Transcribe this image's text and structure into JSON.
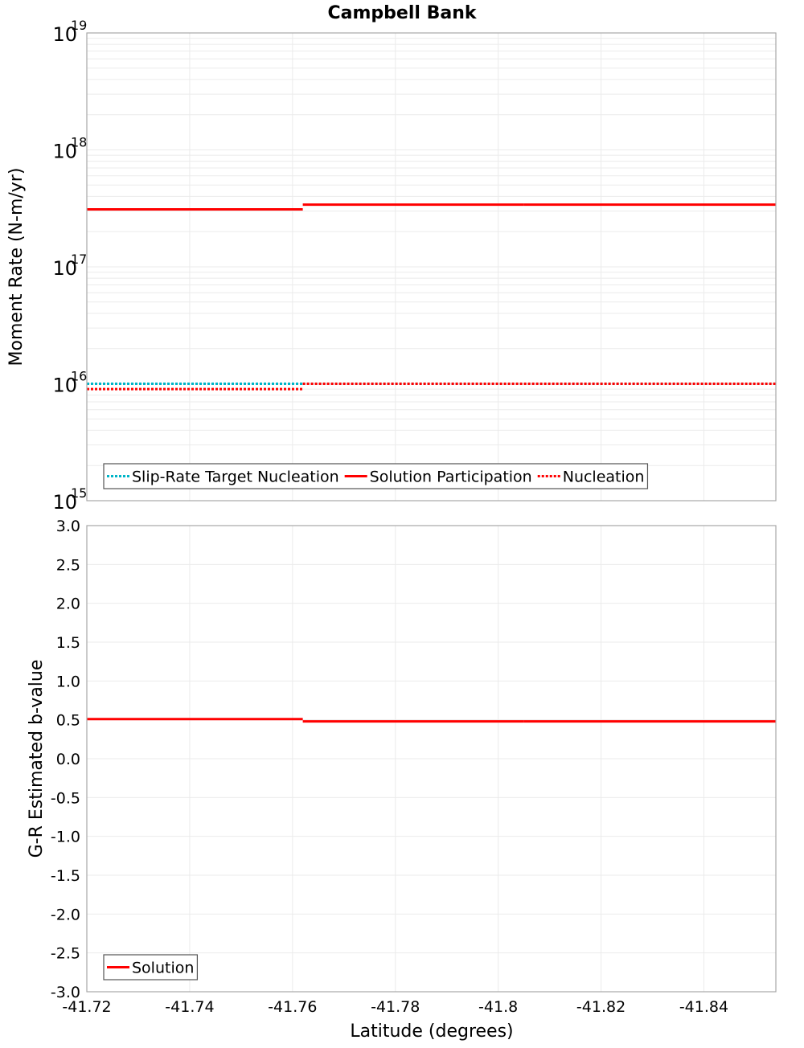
{
  "chart_data": [
    {
      "type": "line",
      "title": "Campbell Bank",
      "xlabel": "Latitude (degrees)",
      "ylabel": "Moment Rate (N-m/yr)",
      "yscale": "log",
      "ylim": [
        1000000000000000.0,
        1e+19
      ],
      "xlim": [
        -41.72,
        -41.854
      ],
      "x_inverted_direction": "decreasing latitude to the right",
      "grid": true,
      "y_ticks": [
        {
          "base": "10",
          "exp": "15",
          "value": 1000000000000000.0
        },
        {
          "base": "10",
          "exp": "16",
          "value": 1e+16
        },
        {
          "base": "10",
          "exp": "17",
          "value": 1e+17
        },
        {
          "base": "10",
          "exp": "18",
          "value": 1e+18
        },
        {
          "base": "10",
          "exp": "19",
          "value": 1e+19
        }
      ],
      "legend_position": "lower-left inside",
      "series": [
        {
          "name": "Slip-Rate Target Nucleation",
          "color": "#00b5c8",
          "style": "dotted",
          "segments": [
            {
              "x0": -41.72,
              "x1": -41.762,
              "y": 1e+16
            },
            {
              "x0": -41.762,
              "x1": -41.805,
              "y": 1e+16
            },
            {
              "x0": -41.805,
              "x1": -41.854,
              "y": 1e+16
            }
          ]
        },
        {
          "name": "Solution Participation",
          "color": "#ff0000",
          "style": "solid",
          "segments": [
            {
              "x0": -41.72,
              "x1": -41.762,
              "y": 3.1e+17
            },
            {
              "x0": -41.762,
              "x1": -41.805,
              "y": 3.4e+17
            },
            {
              "x0": -41.805,
              "x1": -41.854,
              "y": 3.4e+17
            }
          ]
        },
        {
          "name": "Nucleation",
          "color": "#ff0000",
          "style": "dotted",
          "segments": [
            {
              "x0": -41.72,
              "x1": -41.762,
              "y": 9000000000000000.0
            },
            {
              "x0": -41.762,
              "x1": -41.805,
              "y": 1e+16
            },
            {
              "x0": -41.805,
              "x1": -41.854,
              "y": 1e+16
            }
          ]
        }
      ]
    },
    {
      "type": "line",
      "title": "",
      "xlabel": "Latitude (degrees)",
      "ylabel": "G-R Estimated b-value",
      "yscale": "linear",
      "ylim": [
        -3.0,
        3.0
      ],
      "xlim": [
        -41.72,
        -41.854
      ],
      "grid": true,
      "y_ticks": [
        "3.0",
        "2.5",
        "2.0",
        "1.5",
        "1.0",
        "0.5",
        "0.0",
        "-0.5",
        "-1.0",
        "-1.5",
        "-2.0",
        "-2.5",
        "-3.0"
      ],
      "x_ticks": [
        "-41.72",
        "-41.74",
        "-41.76",
        "-41.78",
        "-41.8",
        "-41.82",
        "-41.84"
      ],
      "legend_position": "lower-left inside",
      "series": [
        {
          "name": "Solution",
          "color": "#ff0000",
          "style": "solid",
          "segments": [
            {
              "x0": -41.72,
              "x1": -41.762,
              "y": 0.51
            },
            {
              "x0": -41.762,
              "x1": -41.805,
              "y": 0.48
            },
            {
              "x0": -41.805,
              "x1": -41.854,
              "y": 0.48
            }
          ]
        }
      ]
    }
  ],
  "labels": {
    "title": "Campbell Bank",
    "top_ylabel": "Moment Rate (N-m/yr)",
    "bottom_ylabel": "G-R Estimated b-value",
    "xlabel": "Latitude (degrees)",
    "top_legend": [
      "Slip-Rate Target Nucleation",
      "Solution Participation",
      "Nucleation"
    ],
    "bottom_legend": [
      "Solution"
    ]
  }
}
